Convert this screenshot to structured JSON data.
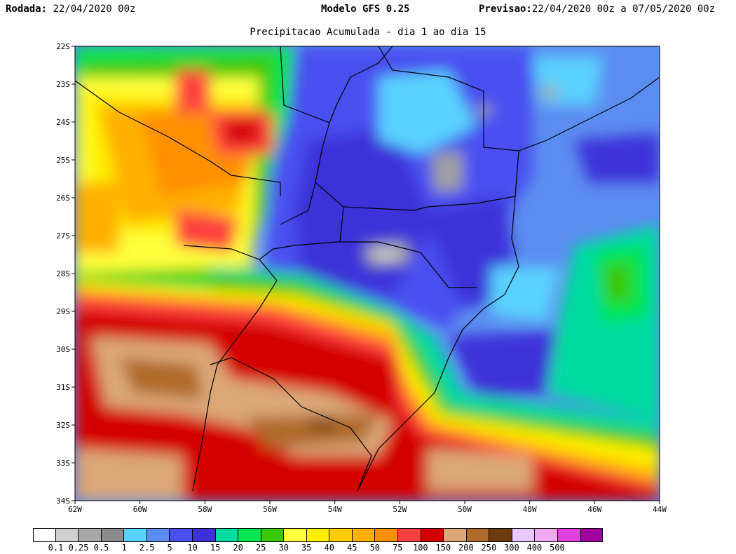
{
  "header": {
    "rodada_label": "Rodada:",
    "rodada_value": "22/04/2020 00z",
    "model": "Modelo GFS 0.25",
    "previsao_label": "Previsao:",
    "previsao_value": "22/04/2020 00z a 07/05/2020 00z"
  },
  "subtitle": "Precipitacao Acumulada - dia 1 ao dia 15",
  "map": {
    "lon_range": [
      -62,
      -44
    ],
    "lat_range": [
      -34,
      -22
    ],
    "lat_ticks": [
      "22S",
      "23S",
      "24S",
      "25S",
      "26S",
      "27S",
      "28S",
      "29S",
      "30S",
      "31S",
      "32S",
      "33S",
      "34S"
    ],
    "lon_ticks": [
      "62W",
      "60W",
      "58W",
      "56W",
      "54W",
      "52W",
      "50W",
      "48W",
      "46W",
      "44W"
    ],
    "regions": {
      "ocean_east": "#5b8df0",
      "ocean_deep": "#3d30d8",
      "south_red": "#d40000",
      "south_brown": "#dba878",
      "south_brown_dark": "#b06a2c",
      "north_west_yellow": "#fff000",
      "north_west_orange": "#ffb000",
      "north_west_green": "#3ac800",
      "gray_center": "#a0a0a0"
    }
  },
  "legend": {
    "colors": [
      "#ffffff",
      "#d0d0d0",
      "#a8a8a8",
      "#8c8c8c",
      "#5ad2ff",
      "#5b8df0",
      "#4a50f0",
      "#3d30d8",
      "#00dca0",
      "#00e650",
      "#3ac800",
      "#ffff3c",
      "#fff000",
      "#ffcc00",
      "#ffb000",
      "#ff9000",
      "#ff4040",
      "#d40000",
      "#dba878",
      "#b06a2c",
      "#6e3a10",
      "#e8c8ff",
      "#f0a8f0",
      "#e040e0",
      "#a000a0"
    ],
    "labels": [
      "0.1",
      "0.25",
      "0.5",
      "1",
      "2.5",
      "5",
      "10",
      "15",
      "20",
      "25",
      "30",
      "35",
      "40",
      "45",
      "50",
      "75",
      "100",
      "150",
      "200",
      "250",
      "300",
      "400",
      "500"
    ]
  }
}
